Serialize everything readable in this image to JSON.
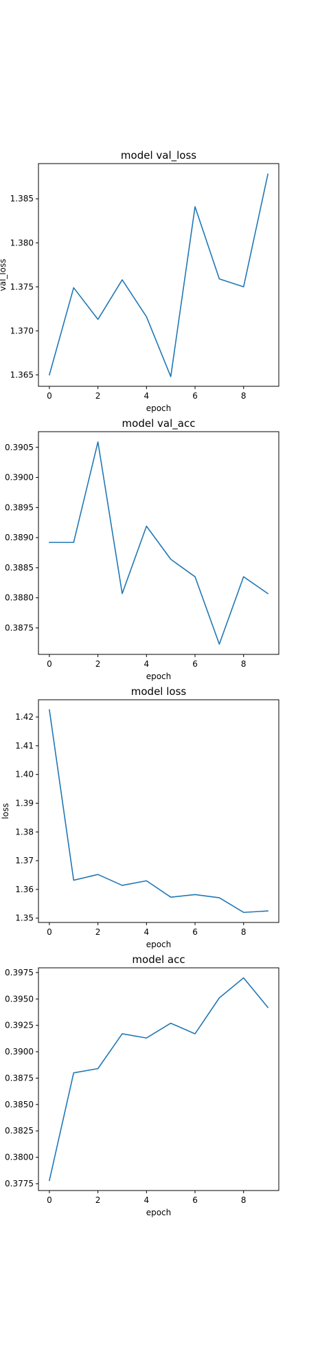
{
  "colors": {
    "series": "#1f77b4"
  },
  "chart_data": [
    {
      "type": "line",
      "title": "model val_loss",
      "xlabel": "epoch",
      "ylabel": "val_loss",
      "x": [
        0,
        1,
        2,
        3,
        4,
        5,
        6,
        7,
        8,
        9
      ],
      "series": [
        {
          "values": [
            1.365,
            1.3749,
            1.3713,
            1.3758,
            1.3716,
            1.3648,
            1.3841,
            1.3759,
            1.375,
            1.3878
          ]
        }
      ],
      "xlim": [
        -0.45,
        9.45
      ],
      "ylim": [
        1.3637,
        1.389
      ],
      "xticks": [
        0,
        2,
        4,
        6,
        8
      ],
      "yticks": [
        1.365,
        1.37,
        1.375,
        1.38,
        1.385
      ],
      "ytick_labels": [
        "1.365",
        "1.370",
        "1.375",
        "1.380",
        "1.385"
      ],
      "grid": false
    },
    {
      "type": "line",
      "title": "model val_acc",
      "xlabel": "epoch",
      "ylabel": "",
      "x": [
        0,
        1,
        2,
        3,
        4,
        5,
        6,
        7,
        8,
        9
      ],
      "series": [
        {
          "values": [
            0.38892,
            0.38892,
            0.39059,
            0.38807,
            0.38919,
            0.38864,
            0.38835,
            0.38723,
            0.38835,
            0.38807
          ]
        }
      ],
      "xlim": [
        -0.45,
        9.45
      ],
      "ylim": [
        0.38706,
        0.39076
      ],
      "xticks": [
        0,
        2,
        4,
        6,
        8
      ],
      "yticks": [
        0.3875,
        0.388,
        0.3885,
        0.389,
        0.3895,
        0.39,
        0.3905
      ],
      "ytick_labels": [
        "0.3875",
        "0.3880",
        "0.3885",
        "0.3890",
        "0.3895",
        "0.3900",
        "0.3905"
      ],
      "grid": false
    },
    {
      "type": "line",
      "title": "model loss",
      "xlabel": "epoch",
      "ylabel": "loss",
      "x": [
        0,
        1,
        2,
        3,
        4,
        5,
        6,
        7,
        8,
        9
      ],
      "series": [
        {
          "values": [
            1.4225,
            1.3632,
            1.3652,
            1.3614,
            1.363,
            1.3573,
            1.3582,
            1.3571,
            1.352,
            1.3525
          ]
        }
      ],
      "xlim": [
        -0.45,
        9.45
      ],
      "ylim": [
        1.3485,
        1.426
      ],
      "xticks": [
        0,
        2,
        4,
        6,
        8
      ],
      "yticks": [
        1.35,
        1.36,
        1.37,
        1.38,
        1.39,
        1.4,
        1.41,
        1.42
      ],
      "ytick_labels": [
        "1.35",
        "1.36",
        "1.37",
        "1.38",
        "1.39",
        "1.40",
        "1.41",
        "1.42"
      ],
      "grid": false
    },
    {
      "type": "line",
      "title": "model acc",
      "xlabel": "epoch",
      "ylabel": "",
      "x": [
        0,
        1,
        2,
        3,
        4,
        5,
        6,
        7,
        8,
        9
      ],
      "series": [
        {
          "values": [
            0.3778,
            0.388,
            0.3884,
            0.3917,
            0.3913,
            0.3927,
            0.3917,
            0.3951,
            0.397,
            0.3942
          ]
        }
      ],
      "xlim": [
        -0.45,
        9.45
      ],
      "ylim": [
        0.37685,
        0.39795
      ],
      "xticks": [
        0,
        2,
        4,
        6,
        8
      ],
      "yticks": [
        0.3775,
        0.38,
        0.3825,
        0.385,
        0.3875,
        0.39,
        0.3925,
        0.395,
        0.3975
      ],
      "ytick_labels": [
        "0.3775",
        "0.3800",
        "0.3825",
        "0.3850",
        "0.3875",
        "0.3900",
        "0.3925",
        "0.3950",
        "0.3975"
      ],
      "grid": false
    }
  ]
}
